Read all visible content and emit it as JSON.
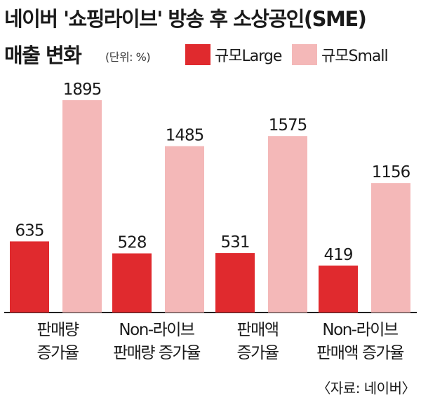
{
  "title_line1": "네이버 '쇼핑라이브' 방송 후 소상공인(SME)",
  "title_line2": "매출 변화",
  "unit": "(단위: %)",
  "source": "〈자료: 네이버〉",
  "colors": {
    "large": "#e02a2e",
    "small": "#f4b8b8"
  },
  "chart_data": {
    "type": "bar",
    "title": "네이버 '쇼핑라이브' 방송 후 소상공인(SME) 매출 변화",
    "unit": "%",
    "categories": [
      [
        "판매량",
        "증가율"
      ],
      [
        "Non-라이브",
        "판매량 증가율"
      ],
      [
        "판매액",
        "증가율"
      ],
      [
        "Non-라이브",
        "판매액 증가율"
      ]
    ],
    "series": [
      {
        "name": "규모Large",
        "values": [
          635,
          528,
          531,
          419
        ]
      },
      {
        "name": "규모Small",
        "values": [
          1895,
          1485,
          1575,
          1156
        ]
      }
    ],
    "ylim": [
      0,
      1895
    ],
    "legend": "top-right",
    "grid": false
  }
}
